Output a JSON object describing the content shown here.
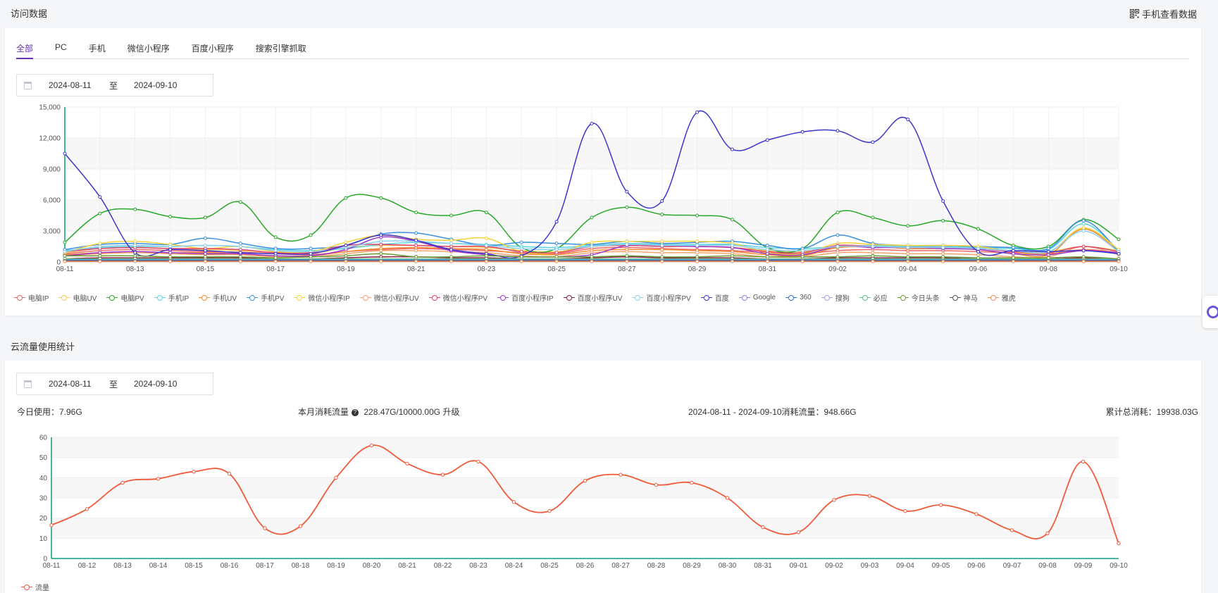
{
  "visit": {
    "title": "访问数据",
    "mobile_label": "手机查看数据",
    "tabs": [
      {
        "label": "全部",
        "active": true
      },
      {
        "label": "PC"
      },
      {
        "label": "手机"
      },
      {
        "label": "微信小程序"
      },
      {
        "label": "百度小程序"
      },
      {
        "label": "搜索引擎抓取"
      }
    ],
    "date_start": "2024-08-11",
    "date_sep": "至",
    "date_end": "2024-09-10"
  },
  "flow": {
    "title": "云流量使用统计",
    "date_start": "2024-08-11",
    "date_sep": "至",
    "date_end": "2024-09-10",
    "today_label": "今日使用：7.96G",
    "month_label": "本月消耗流量",
    "month_value": "228.47G/10000.00G",
    "upgrade_label": "升级",
    "range_label": "2024-08-11 - 2024-09-10消耗流量：948.66G",
    "total_label": "累计总消耗：19938.03G"
  },
  "chart_data": [
    {
      "type": "line",
      "x": [
        "08-11",
        "08-12",
        "08-13",
        "08-14",
        "08-15",
        "08-16",
        "08-17",
        "08-18",
        "08-19",
        "08-20",
        "08-21",
        "08-22",
        "08-23",
        "08-24",
        "08-25",
        "08-26",
        "08-27",
        "08-28",
        "08-29",
        "08-30",
        "08-31",
        "09-01",
        "09-02",
        "09-03",
        "09-04",
        "09-05",
        "09-06",
        "09-07",
        "09-08",
        "09-09",
        "09-10"
      ],
      "xticks": [
        "08-11",
        "08-13",
        "08-15",
        "08-17",
        "08-19",
        "08-21",
        "08-23",
        "08-25",
        "08-27",
        "08-29",
        "08-31",
        "09-02",
        "09-04",
        "09-06",
        "09-08",
        "09-10"
      ],
      "ylim": [
        0,
        15000
      ],
      "yticks": [
        "0",
        "3,000",
        "6,000",
        "9,000",
        "12,000",
        "15,000"
      ],
      "legend_position": "bottom-left",
      "series": [
        {
          "name": "电脑IP",
          "color": "#ee6666",
          "values": [
            800,
            1100,
            1200,
            1100,
            1000,
            950,
            800,
            700,
            1000,
            1200,
            1300,
            1200,
            1100,
            900,
            800,
            1300,
            1400,
            1300,
            1200,
            1100,
            900,
            800,
            1100,
            1200,
            1100,
            1100,
            1000,
            900,
            800,
            1200,
            900
          ]
        },
        {
          "name": "电脑UV",
          "color": "#fac858",
          "values": [
            900,
            1300,
            1400,
            1300,
            1200,
            1100,
            900,
            800,
            1400,
            1600,
            1600,
            1500,
            1400,
            1100,
            1000,
            1500,
            1600,
            1600,
            1500,
            1400,
            1100,
            1000,
            1400,
            1500,
            1400,
            1400,
            1300,
            1100,
            1000,
            1500,
            1100
          ]
        },
        {
          "name": "电脑PV",
          "color": "#29a829",
          "values": [
            1900,
            4700,
            5100,
            4400,
            4300,
            5800,
            2400,
            2600,
            6200,
            6200,
            4800,
            4500,
            4800,
            1400,
            1300,
            4300,
            5300,
            4600,
            4500,
            4100,
            1400,
            1300,
            4800,
            4300,
            3500,
            4000,
            3200,
            1600,
            1500,
            4100,
            2200
          ]
        },
        {
          "name": "手机IP",
          "color": "#5ed5e0",
          "values": [
            1100,
            1400,
            1500,
            1500,
            1600,
            1500,
            1200,
            1100,
            1300,
            1700,
            1900,
            1800,
            1700,
            1500,
            1400,
            1600,
            1800,
            1700,
            1700,
            1700,
            1400,
            1300,
            1500,
            1600,
            1500,
            1500,
            1400,
            1300,
            1200,
            3700,
            1100
          ]
        },
        {
          "name": "手机UV",
          "color": "#f58b30",
          "values": [
            700,
            900,
            1000,
            900,
            900,
            800,
            600,
            600,
            1000,
            1300,
            1400,
            1300,
            1200,
            800,
            700,
            1100,
            1200,
            1200,
            1100,
            1000,
            700,
            600,
            1400,
            1500,
            1300,
            1300,
            1200,
            800,
            700,
            3200,
            1000
          ]
        },
        {
          "name": "手机PV",
          "color": "#3b8fe0",
          "values": [
            1200,
            1700,
            1800,
            1700,
            2300,
            1800,
            1300,
            1300,
            1600,
            2700,
            2800,
            2200,
            1600,
            1900,
            1800,
            1700,
            2000,
            1800,
            1900,
            2000,
            1600,
            1300,
            2600,
            1800,
            1600,
            1600,
            1500,
            1400,
            1300,
            4000,
            1000
          ]
        },
        {
          "name": "微信小程序IP",
          "color": "#f5d23a",
          "values": [
            900,
            1800,
            2000,
            1700,
            1300,
            1500,
            1000,
            1000,
            1900,
            2600,
            2200,
            2100,
            2300,
            1000,
            900,
            1900,
            2000,
            2000,
            2000,
            1800,
            900,
            800,
            1800,
            1700,
            1600,
            1600,
            1500,
            1000,
            900,
            3300,
            1200
          ]
        },
        {
          "name": "微信小程序UV",
          "color": "#f2a36b",
          "values": [
            600,
            800,
            900,
            800,
            700,
            700,
            500,
            500,
            800,
            1100,
            1100,
            1000,
            900,
            600,
            500,
            900,
            1000,
            900,
            900,
            800,
            500,
            500,
            900,
            900,
            800,
            800,
            700,
            500,
            500,
            1500,
            700
          ]
        },
        {
          "name": "微信小程序PV",
          "color": "#e0446b",
          "values": [
            1000,
            1300,
            1400,
            1300,
            1300,
            1200,
            900,
            900,
            1600,
            1700,
            1600,
            1500,
            1500,
            1000,
            900,
            1500,
            1600,
            1500,
            1500,
            1400,
            1000,
            900,
            1600,
            1500,
            1400,
            1400,
            1300,
            1000,
            900,
            1500,
            1000
          ]
        },
        {
          "name": "百度小程序IP",
          "color": "#9b35c8",
          "values": [
            600,
            900,
            1000,
            900,
            800,
            800,
            600,
            600,
            1200,
            2400,
            2000,
            1100,
            700,
            500,
            500,
            700,
            1600,
            1600,
            1500,
            1400,
            800,
            700,
            1500,
            1400,
            1400,
            1300,
            1200,
            800,
            700,
            1100,
            900
          ]
        },
        {
          "name": "百度小程序UV",
          "color": "#8b1b3c",
          "values": [
            300,
            400,
            400,
            400,
            400,
            400,
            300,
            300,
            400,
            500,
            500,
            400,
            400,
            300,
            300,
            400,
            500,
            400,
            400,
            400,
            300,
            300,
            400,
            400,
            400,
            400,
            300,
            300,
            300,
            400,
            300
          ]
        },
        {
          "name": "百度小程序PV",
          "color": "#8ecff0",
          "values": [
            1000,
            1500,
            1600,
            1500,
            1600,
            1500,
            1100,
            1000,
            1400,
            2000,
            2000,
            1800,
            1600,
            1300,
            1200,
            1500,
            1700,
            1600,
            1600,
            1600,
            1200,
            1100,
            1500,
            1500,
            1400,
            1400,
            1300,
            1100,
            1000,
            3000,
            1000
          ]
        },
        {
          "name": "百度",
          "color": "#3d36cc",
          "values": [
            10500,
            6300,
            900,
            1200,
            1100,
            900,
            800,
            800,
            1600,
            2600,
            2100,
            1200,
            800,
            600,
            3900,
            13400,
            6800,
            5900,
            14500,
            10900,
            11800,
            12600,
            12700,
            11600,
            13800,
            5900,
            1000,
            1100,
            1000,
            1100,
            800
          ]
        },
        {
          "name": "Google",
          "color": "#8b84e0",
          "values": [
            100,
            100,
            100,
            100,
            100,
            100,
            100,
            100,
            100,
            100,
            100,
            100,
            100,
            100,
            100,
            100,
            100,
            100,
            100,
            100,
            100,
            100,
            100,
            100,
            100,
            100,
            100,
            100,
            100,
            100,
            100
          ]
        },
        {
          "name": "360",
          "color": "#3070d8",
          "values": [
            200,
            200,
            200,
            200,
            200,
            200,
            200,
            200,
            200,
            200,
            200,
            200,
            200,
            200,
            200,
            200,
            200,
            200,
            200,
            200,
            200,
            200,
            200,
            200,
            200,
            200,
            200,
            200,
            200,
            200,
            200
          ]
        },
        {
          "name": "搜狗",
          "color": "#a79ce8",
          "values": [
            100,
            100,
            100,
            100,
            100,
            100,
            100,
            100,
            100,
            100,
            100,
            100,
            100,
            100,
            100,
            100,
            100,
            100,
            100,
            100,
            100,
            100,
            100,
            100,
            100,
            100,
            100,
            100,
            100,
            100,
            100
          ]
        },
        {
          "name": "必应",
          "color": "#62c28a",
          "values": [
            300,
            300,
            300,
            300,
            300,
            300,
            300,
            300,
            300,
            300,
            300,
            300,
            300,
            300,
            300,
            300,
            300,
            300,
            300,
            300,
            300,
            300,
            300,
            300,
            300,
            300,
            300,
            300,
            300,
            300,
            300
          ]
        },
        {
          "name": "今日头条",
          "color": "#6a9a35",
          "values": [
            600,
            600,
            600,
            500,
            500,
            500,
            400,
            500,
            600,
            800,
            500,
            500,
            600,
            500,
            500,
            500,
            600,
            500,
            500,
            600,
            500,
            500,
            500,
            600,
            500,
            500,
            400,
            400,
            400,
            500,
            300
          ]
        },
        {
          "name": "神马",
          "color": "#555555",
          "values": [
            100,
            100,
            100,
            100,
            100,
            100,
            100,
            100,
            100,
            100,
            100,
            100,
            100,
            100,
            100,
            100,
            100,
            100,
            100,
            100,
            100,
            100,
            100,
            100,
            100,
            100,
            100,
            100,
            100,
            100,
            100
          ]
        },
        {
          "name": "雅虎",
          "color": "#f08a5a",
          "values": [
            50,
            50,
            50,
            50,
            50,
            50,
            50,
            50,
            50,
            50,
            50,
            50,
            50,
            50,
            50,
            50,
            50,
            50,
            50,
            50,
            50,
            50,
            50,
            50,
            50,
            50,
            50,
            50,
            50,
            50,
            50
          ]
        }
      ]
    },
    {
      "type": "line",
      "x": [
        "08-11",
        "08-12",
        "08-13",
        "08-14",
        "08-15",
        "08-16",
        "08-17",
        "08-18",
        "08-19",
        "08-20",
        "08-21",
        "08-22",
        "08-23",
        "08-24",
        "08-25",
        "08-26",
        "08-27",
        "08-28",
        "08-29",
        "08-30",
        "08-31",
        "09-01",
        "09-02",
        "09-03",
        "09-04",
        "09-05",
        "09-06",
        "09-07",
        "09-08",
        "09-09",
        "09-10"
      ],
      "xticks": [
        "08-11",
        "08-12",
        "08-13",
        "08-14",
        "08-15",
        "08-16",
        "08-17",
        "08-18",
        "08-19",
        "08-20",
        "08-21",
        "08-22",
        "08-23",
        "08-24",
        "08-25",
        "08-26",
        "08-27",
        "08-28",
        "08-29",
        "08-30",
        "08-31",
        "09-01",
        "09-02",
        "09-03",
        "09-04",
        "09-05",
        "09-06",
        "09-07",
        "09-08",
        "09-09",
        "09-10"
      ],
      "ylim": [
        0,
        60
      ],
      "yticks": [
        "0",
        "10",
        "20",
        "30",
        "40",
        "50",
        "60"
      ],
      "legend_position": "bottom-left",
      "series": [
        {
          "name": "流量",
          "color": "#f05a3a",
          "values": [
            16.5,
            24.5,
            37.5,
            39.5,
            43,
            42,
            15,
            16,
            40,
            56,
            47,
            41.5,
            48,
            28,
            23.5,
            38.5,
            41.5,
            36.5,
            37.5,
            30,
            15.5,
            13,
            29,
            31,
            23.5,
            26.5,
            22,
            14,
            12.5,
            48,
            7.5
          ]
        }
      ]
    }
  ]
}
